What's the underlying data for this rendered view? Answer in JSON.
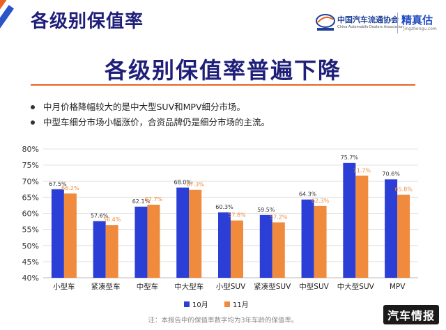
{
  "header": {
    "title": "各级别保值率"
  },
  "logo": {
    "org_cn": "中国汽车流通协会",
    "org_en": "China Automobile Dealers Association",
    "brand_cn": "精真估",
    "brand_en": "jingzhengu.com"
  },
  "slide": {
    "title": "各级别保值率普遍下降",
    "bullets": [
      "中月价格降幅较大的是中大型SUV和MPV细分市场。",
      "中型车细分市场小幅涨价，合资品牌仍是细分市场的主流。"
    ],
    "footnote": "注：本报告中的保值率数字均为3年车龄的保值率。",
    "watermark": "汽车情报"
  },
  "colors": {
    "series_oct": "#2b3fd6",
    "series_nov": "#f08a3c",
    "title": "#1f1f7a",
    "accent": "#e9621f"
  },
  "chart_data": {
    "type": "bar",
    "categories": [
      "小型车",
      "紧凑型车",
      "中型车",
      "中大型车",
      "小型SUV",
      "紧凑型SUV",
      "中型SUV",
      "中大型SUV",
      "MPV"
    ],
    "series": [
      {
        "name": "10月",
        "values": [
          67.5,
          57.6,
          62.1,
          68.0,
          60.3,
          59.5,
          64.3,
          75.7,
          70.6
        ],
        "labels": [
          "67.5%",
          "57.6%",
          "62.1%",
          "68.0%",
          "60.3%",
          "59.5%",
          "64.3%",
          "75.7%",
          "70.6%"
        ]
      },
      {
        "name": "11月",
        "values": [
          66.2,
          56.4,
          62.7,
          67.3,
          57.8,
          57.2,
          62.3,
          71.7,
          65.8
        ],
        "labels": [
          "66.2%",
          "56.4%",
          "62.7%",
          "67.3%",
          "57.8%",
          "57.2%",
          "62.3%",
          "71.7%",
          "65.8%"
        ]
      }
    ],
    "ylim": [
      40,
      80
    ],
    "yticks": [
      "40%",
      "45%",
      "50%",
      "55%",
      "60%",
      "65%",
      "70%",
      "75%",
      "80%"
    ],
    "title": "",
    "xlabel": "",
    "ylabel": "",
    "grid": true,
    "legend": "bottom-center"
  }
}
